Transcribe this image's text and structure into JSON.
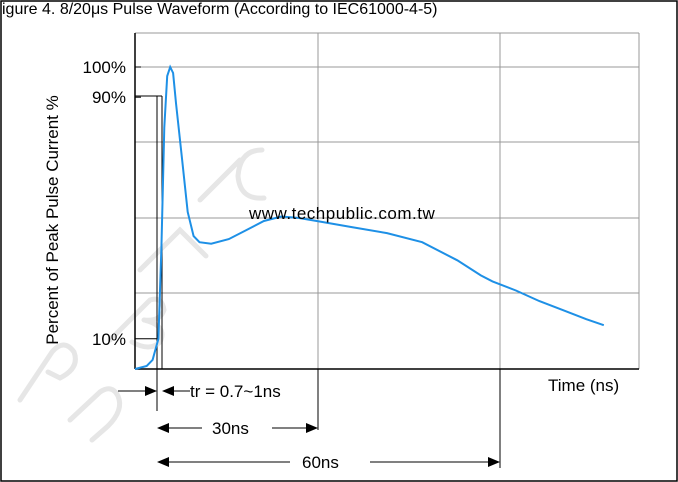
{
  "header_text": "igure 4.   8/20μs Pulse Waveform (According to IEC61000-4-5)",
  "watermark": {
    "url": "www.techpublic.com.tw",
    "letters": "PUBLIC"
  },
  "annotations": {
    "rise_time": "tr = 0.7~1ns",
    "t30": "30ns",
    "t60": "60ns"
  },
  "chart_data": {
    "type": "line",
    "title": "",
    "xlabel": "Time (ns)",
    "ylabel": "Percent of Peak Pulse Current %",
    "xlim": [
      -1,
      85
    ],
    "ylim": [
      0,
      100
    ],
    "grid": true,
    "y_tick_labels": [
      {
        "value": 100,
        "label": "100%"
      },
      {
        "value": 90,
        "label": "90%"
      },
      {
        "value": 10,
        "label": "10%"
      }
    ],
    "series": [
      {
        "color": "#1e90e6",
        "points": [
          [
            -1,
            0
          ],
          [
            0,
            0.5
          ],
          [
            1,
            1
          ],
          [
            2,
            3
          ],
          [
            3,
            10
          ],
          [
            3.5,
            40
          ],
          [
            4,
            80
          ],
          [
            4.5,
            97
          ],
          [
            5,
            100
          ],
          [
            5.5,
            98
          ],
          [
            6,
            88
          ],
          [
            7,
            70
          ],
          [
            8,
            52
          ],
          [
            9,
            44
          ],
          [
            10,
            42
          ],
          [
            12,
            41.5
          ],
          [
            15,
            43
          ],
          [
            18,
            46
          ],
          [
            21,
            49
          ],
          [
            24,
            50.5
          ],
          [
            27,
            50
          ],
          [
            30,
            49
          ],
          [
            36,
            47
          ],
          [
            42,
            45
          ],
          [
            48,
            42
          ],
          [
            54,
            36
          ],
          [
            58,
            31
          ],
          [
            60,
            29
          ],
          [
            64,
            26
          ],
          [
            68,
            22.5
          ],
          [
            72,
            19.5
          ],
          [
            76,
            16.5
          ],
          [
            79,
            14.5
          ]
        ]
      }
    ]
  }
}
